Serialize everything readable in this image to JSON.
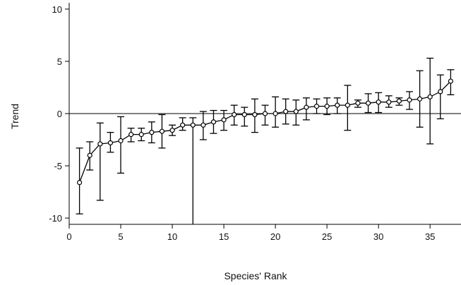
{
  "chart_data": {
    "type": "scatter",
    "title": "",
    "xlabel": "Species' Rank",
    "ylabel": "Trend",
    "xlim": [
      0,
      38
    ],
    "ylim": [
      -10.6,
      10.6
    ],
    "x_ticks": [
      0,
      5,
      10,
      15,
      20,
      25,
      30,
      35
    ],
    "x_tick_labels": [
      "0",
      "5",
      "10",
      "15",
      "20",
      "25",
      "30",
      "35"
    ],
    "y_ticks": [
      10,
      5,
      0,
      -5,
      -10
    ],
    "y_tick_labels": [
      "10",
      "5",
      "0",
      "-5",
      "-10"
    ],
    "reference_line_y": 0,
    "grid": false,
    "legend": "none",
    "colors": {
      "line": "#000000",
      "marker_fill": "#ffffff",
      "axis": "#000000"
    },
    "series": [
      {
        "x": [
          1,
          2,
          3,
          4,
          5,
          6,
          7,
          8,
          9,
          10,
          11,
          12,
          13,
          14,
          15,
          16,
          17,
          18,
          19,
          20,
          21,
          22,
          23,
          24,
          25,
          26,
          27,
          28,
          29,
          30,
          31,
          32,
          33,
          34,
          35,
          36,
          37
        ],
        "y": [
          -6.6,
          -4.0,
          -2.9,
          -2.8,
          -2.6,
          -2.0,
          -2.0,
          -1.8,
          -1.7,
          -1.6,
          -1.1,
          -1.1,
          -1.1,
          -0.8,
          -0.6,
          -0.1,
          -0.1,
          -0.1,
          0.0,
          0.0,
          0.2,
          0.2,
          0.6,
          0.7,
          0.7,
          0.8,
          0.8,
          1.0,
          1.0,
          1.1,
          1.1,
          1.2,
          1.3,
          1.4,
          1.6,
          2.1,
          3.1
        ],
        "y_lower": [
          -9.6,
          -5.4,
          -8.3,
          -3.7,
          -5.7,
          -2.7,
          -2.6,
          -2.8,
          -3.3,
          -2.1,
          -1.6,
          -10.6,
          -2.5,
          -1.9,
          -1.6,
          -1.1,
          -1.2,
          -1.8,
          -1.1,
          -1.3,
          -1.0,
          -1.1,
          -0.6,
          0.0,
          -0.1,
          0.0,
          -1.6,
          0.6,
          0.1,
          0.1,
          0.6,
          0.8,
          0.4,
          -1.3,
          -2.9,
          -0.5,
          1.8
        ],
        "y_upper": [
          -3.3,
          -2.7,
          -0.9,
          -1.8,
          -0.3,
          -1.4,
          -1.4,
          -0.8,
          -0.1,
          -1.1,
          -0.4,
          -0.4,
          0.2,
          0.3,
          0.3,
          0.8,
          0.6,
          1.4,
          0.8,
          1.6,
          1.4,
          1.3,
          1.5,
          1.4,
          1.5,
          1.5,
          2.7,
          1.3,
          1.9,
          2.0,
          1.7,
          1.5,
          2.1,
          4.1,
          5.3,
          3.7,
          4.2
        ]
      }
    ]
  }
}
